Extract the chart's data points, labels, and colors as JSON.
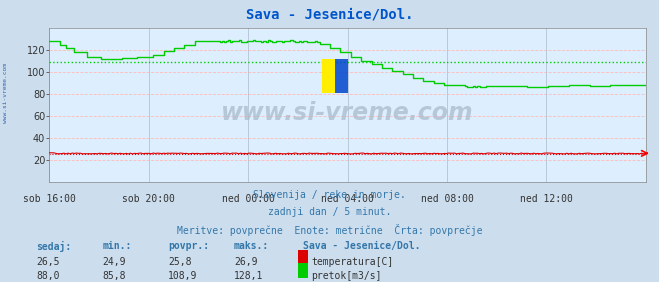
{
  "title": "Sava - Jesenice/Dol.",
  "title_color": "#0055cc",
  "fig_bg_color": "#ccdded",
  "plot_bg_color": "#ddeeff",
  "ylim": [
    0,
    140
  ],
  "yticks": [
    20,
    40,
    60,
    80,
    100,
    120
  ],
  "x_tick_labels": [
    "sob 16:00",
    "sob 20:00",
    "ned 00:00",
    "ned 04:00",
    "ned 08:00",
    "ned 12:00"
  ],
  "x_tick_positions": [
    0.0,
    0.1667,
    0.3333,
    0.5,
    0.6667,
    0.8333
  ],
  "temp_color": "#dd0000",
  "flow_color": "#00cc00",
  "avg_flow_value": 108.9,
  "avg_temp_value": 25.8,
  "info_line1": "Slovenija / reke in morje.",
  "info_line2": "zadnji dan / 5 minut.",
  "info_line3": "Meritve: povprečne  Enote: metrične  Črta: povprečje",
  "info_color": "#3377aa",
  "table_headers": [
    "sedaj:",
    "min.:",
    "povpr.:",
    "maks.:"
  ],
  "station_name": "Sava - Jesenice/Dol.",
  "table_color": "#3377aa",
  "temp_row": [
    "26,5",
    "24,9",
    "25,8",
    "26,9"
  ],
  "flow_row": [
    "88,0",
    "85,8",
    "108,9",
    "128,1"
  ],
  "temp_label": "temperatura[C]",
  "flow_label": "pretok[m3/s]",
  "sidebar_text": "www.si-vreme.com",
  "sidebar_color": "#3366aa",
  "watermark_text": "www.si-vreme.com",
  "watermark_color": "#aabbcc",
  "n_points": 288
}
